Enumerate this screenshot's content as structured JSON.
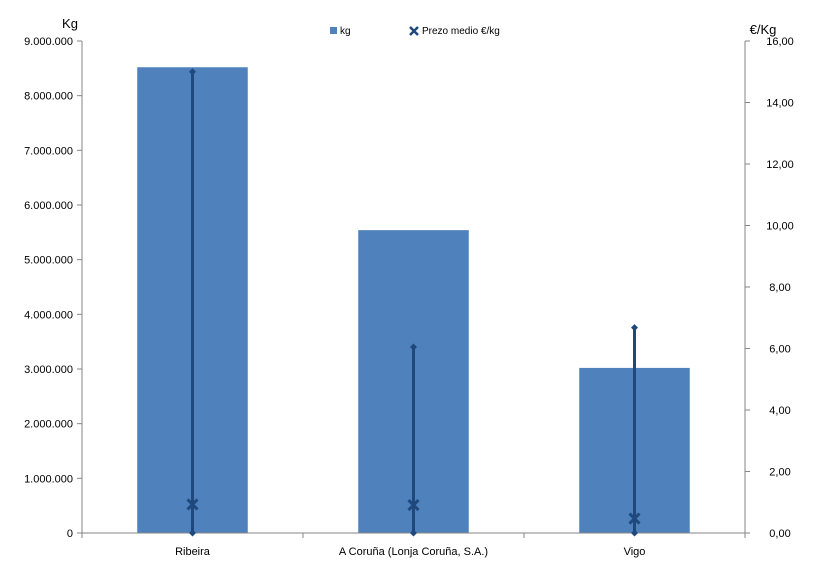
{
  "chart_data": {
    "type": "bar",
    "categories": [
      "Ribeira",
      "A Coruña (Lonja Coruña, S.A.)",
      "Vigo"
    ],
    "series": [
      {
        "name": "kg",
        "axis": "left",
        "values": [
          8520000,
          5540000,
          3020000
        ],
        "color": "#4F81BD"
      },
      {
        "name": "Prezo medio €/kg",
        "axis": "right",
        "marker": "x",
        "values": [
          0.93,
          0.91,
          0.47
        ],
        "color": "#1F497D"
      }
    ],
    "range_lines": {
      "color": "#1F497D",
      "low": [
        0.0,
        0.0,
        0.0
      ],
      "high": [
        15.0,
        6.05,
        6.68
      ]
    },
    "ylabel_left": "Kg",
    "ylabel_right": "€/Kg",
    "ylim_left": [
      0,
      9000000
    ],
    "ylim_right": [
      0,
      16
    ],
    "yticks_left": [
      "0",
      "1.000.000",
      "2.000.000",
      "3.000.000",
      "4.000.000",
      "5.000.000",
      "6.000.000",
      "7.000.000",
      "8.000.000",
      "9.000.000"
    ],
    "yticks_right": [
      "0,00",
      "2,00",
      "4,00",
      "6,00",
      "8,00",
      "10,00",
      "12,00",
      "14,00",
      "16,00"
    ],
    "legend_position": "top",
    "grid": false
  }
}
